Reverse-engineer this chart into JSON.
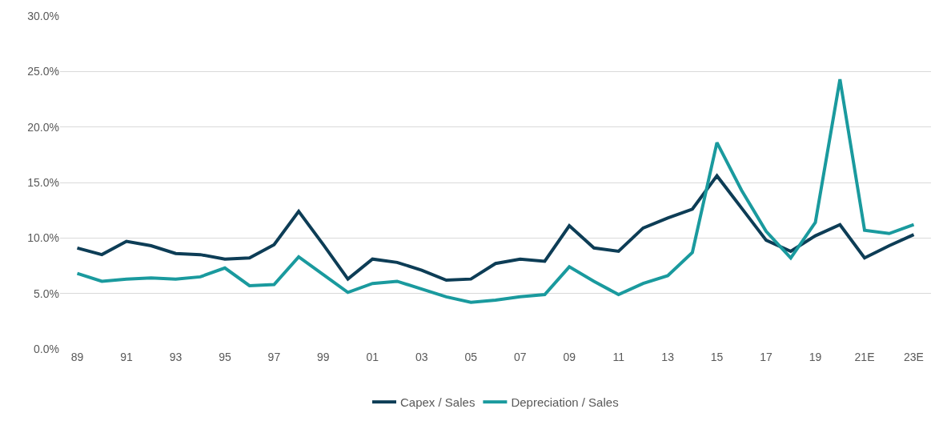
{
  "chart_data": {
    "type": "line",
    "categories": [
      "89",
      null,
      "91",
      null,
      "93",
      null,
      "95",
      null,
      "97",
      null,
      "99",
      null,
      "01",
      null,
      "03",
      null,
      "05",
      null,
      "07",
      null,
      "09",
      null,
      "11",
      null,
      "13",
      null,
      "15",
      null,
      "17",
      null,
      "19",
      null,
      "21E",
      null,
      "23E"
    ],
    "series": [
      {
        "name": "Capex / Sales",
        "color": "#0d3d56",
        "values": [
          9.1,
          8.5,
          9.7,
          9.3,
          8.6,
          8.5,
          8.1,
          8.2,
          9.4,
          12.4,
          9.4,
          6.3,
          8.1,
          7.8,
          7.1,
          6.2,
          6.3,
          7.7,
          8.1,
          7.9,
          11.1,
          9.1,
          8.8,
          10.9,
          11.8,
          12.6,
          15.6,
          12.7,
          9.8,
          8.8,
          10.2,
          11.2,
          8.2,
          9.3,
          10.3
        ]
      },
      {
        "name": "Depreciation / Sales",
        "color": "#1a9a9e",
        "values": [
          6.8,
          6.1,
          6.3,
          6.4,
          6.3,
          6.5,
          7.3,
          5.7,
          5.8,
          8.3,
          6.7,
          5.1,
          5.9,
          6.1,
          5.4,
          4.7,
          4.2,
          4.4,
          4.7,
          4.9,
          7.4,
          6.1,
          4.9,
          5.9,
          6.6,
          8.7,
          18.6,
          14.3,
          10.6,
          8.2,
          11.4,
          24.3,
          10.7,
          10.4,
          11.2
        ]
      }
    ],
    "ylim": [
      0,
      30
    ],
    "yticks": [
      {
        "value": 0,
        "label": "0.0%"
      },
      {
        "value": 5,
        "label": "5.0%"
      },
      {
        "value": 10,
        "label": "10.0%"
      },
      {
        "value": 15,
        "label": "15.0%"
      },
      {
        "value": 20,
        "label": "20.0%"
      },
      {
        "value": 25,
        "label": "25.0%"
      },
      {
        "value": 30,
        "label": "30.0%"
      }
    ],
    "grid": "y",
    "legend": "bottom",
    "marker": "none",
    "line_style": "solid"
  }
}
